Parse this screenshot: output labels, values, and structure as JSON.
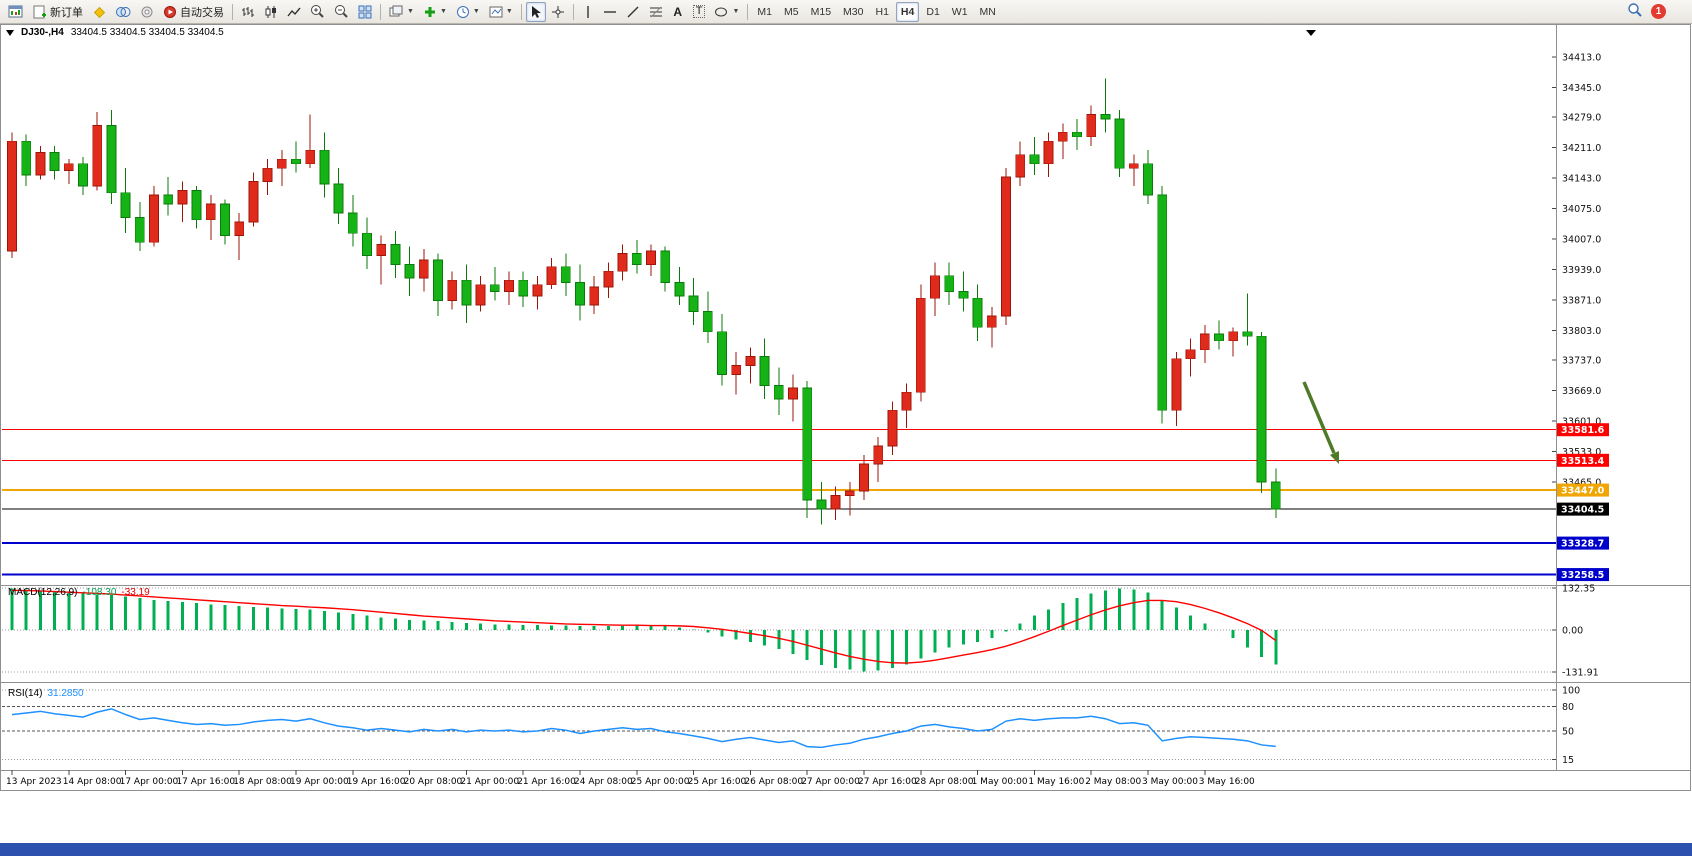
{
  "toolbar": {
    "new_order_label": "新订单",
    "auto_trading_label": "自动交易",
    "text_tool_label": "A",
    "label_tool_label": "T",
    "timeframes": [
      "M1",
      "M5",
      "M15",
      "M30",
      "H1",
      "H4",
      "D1",
      "W1",
      "MN"
    ],
    "active_timeframe": "H4",
    "notification_count": "1"
  },
  "chart": {
    "title": "DJ30-,H4",
    "ohlc": "33404.5 33404.5 33404.5 33404.5"
  },
  "colors": {
    "up": "#e02a1c",
    "up_border": "#9c1508",
    "down": "#16b316",
    "down_border": "#0a7a0a",
    "macd_hist": "#00b050",
    "macd_signal": "#ff0000",
    "rsi_line": "#1e90ff",
    "arrow": "#4e7a28",
    "axis_text": "#111111",
    "separator": "#8f8f8f"
  },
  "chart_data": {
    "type": "candlestick",
    "symbol": "DJ30-",
    "timeframe": "H4",
    "y_axis": {
      "ticks": [
        34413.0,
        34345.0,
        34279.0,
        34211.0,
        34143.0,
        34075.0,
        34007.0,
        33939.0,
        33871.0,
        33803.0,
        33737.0,
        33669.0,
        33601.0,
        33533.0,
        33465.0
      ]
    },
    "hlines": [
      {
        "price": 33581.6,
        "label": "33581.6",
        "color": "#ff0000",
        "width": 1
      },
      {
        "price": 33513.4,
        "label": "33513.4",
        "color": "#ff0000",
        "width": 1
      },
      {
        "price": 33447.0,
        "label": "33447.0",
        "color": "#f0a500",
        "width": 2
      },
      {
        "price": 33404.5,
        "label": "33404.5",
        "color": "#000000",
        "width": 1,
        "current": true
      },
      {
        "price": 33328.7,
        "label": "33328.7",
        "color": "#0000cd",
        "width": 2
      },
      {
        "price": 33258.5,
        "label": "33258.5",
        "color": "#0000cd",
        "width": 2
      }
    ],
    "candles": [
      [
        33980,
        34245,
        33965,
        34225
      ],
      [
        34225,
        34240,
        34125,
        34150
      ],
      [
        34150,
        34215,
        34140,
        34200
      ],
      [
        34200,
        34215,
        34140,
        34160
      ],
      [
        34160,
        34185,
        34130,
        34175
      ],
      [
        34175,
        34190,
        34105,
        34125
      ],
      [
        34125,
        34290,
        34115,
        34260
      ],
      [
        34260,
        34295,
        34085,
        34110
      ],
      [
        34110,
        34165,
        34020,
        34055
      ],
      [
        34055,
        34090,
        33980,
        34000
      ],
      [
        34000,
        34125,
        33990,
        34105
      ],
      [
        34105,
        34145,
        34060,
        34085
      ],
      [
        34085,
        34135,
        34045,
        34115
      ],
      [
        34115,
        34125,
        34030,
        34050
      ],
      [
        34050,
        34105,
        34005,
        34085
      ],
      [
        34085,
        34095,
        33995,
        34015
      ],
      [
        34015,
        34065,
        33960,
        34045
      ],
      [
        34045,
        34155,
        34035,
        34135
      ],
      [
        34135,
        34185,
        34105,
        34165
      ],
      [
        34165,
        34205,
        34125,
        34185
      ],
      [
        34185,
        34225,
        34155,
        34175
      ],
      [
        34175,
        34285,
        34165,
        34205
      ],
      [
        34205,
        34245,
        34100,
        34130
      ],
      [
        34130,
        34165,
        34040,
        34065
      ],
      [
        34065,
        34105,
        33990,
        34020
      ],
      [
        34020,
        34055,
        33940,
        33970
      ],
      [
        33970,
        34015,
        33905,
        33995
      ],
      [
        33995,
        34025,
        33920,
        33950
      ],
      [
        33950,
        33990,
        33880,
        33920
      ],
      [
        33920,
        33985,
        33890,
        33960
      ],
      [
        33960,
        33975,
        33835,
        33870
      ],
      [
        33870,
        33935,
        33850,
        33915
      ],
      [
        33915,
        33950,
        33820,
        33860
      ],
      [
        33860,
        33925,
        33845,
        33905
      ],
      [
        33905,
        33945,
        33870,
        33890
      ],
      [
        33890,
        33935,
        33860,
        33915
      ],
      [
        33915,
        33935,
        33855,
        33880
      ],
      [
        33880,
        33925,
        33850,
        33905
      ],
      [
        33905,
        33965,
        33895,
        33945
      ],
      [
        33945,
        33975,
        33880,
        33910
      ],
      [
        33910,
        33950,
        33825,
        33860
      ],
      [
        33860,
        33925,
        33840,
        33900
      ],
      [
        33900,
        33955,
        33875,
        33935
      ],
      [
        33935,
        33995,
        33915,
        33975
      ],
      [
        33975,
        34005,
        33930,
        33950
      ],
      [
        33950,
        33995,
        33925,
        33980
      ],
      [
        33980,
        33990,
        33890,
        33910
      ],
      [
        33910,
        33945,
        33860,
        33880
      ],
      [
        33880,
        33920,
        33815,
        33845
      ],
      [
        33845,
        33890,
        33775,
        33800
      ],
      [
        33800,
        33840,
        33680,
        33705
      ],
      [
        33705,
        33755,
        33660,
        33725
      ],
      [
        33725,
        33765,
        33685,
        33745
      ],
      [
        33745,
        33785,
        33650,
        33680
      ],
      [
        33680,
        33720,
        33615,
        33650
      ],
      [
        33650,
        33705,
        33600,
        33675
      ],
      [
        33675,
        33690,
        33385,
        33425
      ],
      [
        33425,
        33465,
        33370,
        33405
      ],
      [
        33405,
        33455,
        33380,
        33435
      ],
      [
        33435,
        33465,
        33390,
        33445
      ],
      [
        33445,
        33525,
        33425,
        33505
      ],
      [
        33505,
        33565,
        33465,
        33545
      ],
      [
        33545,
        33645,
        33525,
        33625
      ],
      [
        33625,
        33685,
        33585,
        33665
      ],
      [
        33665,
        33905,
        33645,
        33875
      ],
      [
        33875,
        33955,
        33835,
        33925
      ],
      [
        33925,
        33955,
        33860,
        33890
      ],
      [
        33890,
        33935,
        33845,
        33875
      ],
      [
        33875,
        33905,
        33780,
        33810
      ],
      [
        33810,
        33855,
        33765,
        33835
      ],
      [
        33835,
        34165,
        33815,
        34145
      ],
      [
        34145,
        34225,
        34125,
        34195
      ],
      [
        34195,
        34235,
        34150,
        34175
      ],
      [
        34175,
        34245,
        34145,
        34225
      ],
      [
        34225,
        34265,
        34185,
        34245
      ],
      [
        34245,
        34275,
        34205,
        34235
      ],
      [
        34235,
        34305,
        34215,
        34285
      ],
      [
        34285,
        34365,
        34245,
        34275
      ],
      [
        34275,
        34295,
        34145,
        34165
      ],
      [
        34165,
        34195,
        34125,
        34175
      ],
      [
        34175,
        34205,
        34085,
        34105
      ],
      [
        34105,
        34125,
        33595,
        33625
      ],
      [
        33625,
        33755,
        33590,
        33740
      ],
      [
        33740,
        33785,
        33700,
        33760
      ],
      [
        33760,
        33815,
        33730,
        33795
      ],
      [
        33795,
        33825,
        33760,
        33780
      ],
      [
        33780,
        33810,
        33745,
        33800
      ],
      [
        33800,
        33885,
        33770,
        33790
      ],
      [
        33790,
        33800,
        33440,
        33465
      ],
      [
        33465,
        33495,
        33385,
        33404.5
      ]
    ],
    "time_labels": [
      "13 Apr 2023",
      "14 Apr 08:00",
      "17 Apr 00:00",
      "17 Apr 16:00",
      "18 Apr 08:00",
      "19 Apr 00:00",
      "19 Apr 16:00",
      "20 Apr 08:00",
      "21 Apr 00:00",
      "21 Apr 16:00",
      "24 Apr 08:00",
      "25 Apr 00:00",
      "25 Apr 16:00",
      "26 Apr 08:00",
      "27 Apr 00:00",
      "27 Apr 16:00",
      "28 Apr 08:00",
      "1 May 00:00",
      "1 May 16:00",
      "2 May 08:00",
      "3 May 00:00",
      "3 May 16:00"
    ],
    "macd": {
      "label": "MACD(12,26,9)",
      "value": "-108.30",
      "signal_value": "-33.19",
      "scale": {
        "max": 132.35,
        "min": -131.91
      },
      "scale_labels": [
        "132.35",
        "0.00",
        "-131.91"
      ],
      "histogram": [
        130,
        128,
        125,
        120,
        118,
        115,
        112,
        110,
        105,
        100,
        95,
        92,
        88,
        85,
        80,
        78,
        75,
        72,
        70,
        68,
        66,
        64,
        60,
        55,
        50,
        45,
        40,
        36,
        32,
        30,
        28,
        25,
        22,
        20,
        18,
        17,
        16,
        15,
        14,
        14,
        13,
        12,
        12,
        13,
        14,
        14,
        12,
        8,
        2,
        -8,
        -20,
        -30,
        -38,
        -48,
        -60,
        -75,
        -95,
        -110,
        -120,
        -125,
        -130,
        -128,
        -120,
        -108,
        -90,
        -70,
        -55,
        -45,
        -38,
        -25,
        -5,
        20,
        45,
        65,
        85,
        100,
        115,
        125,
        130,
        128,
        118,
        95,
        70,
        45,
        20,
        0,
        -25,
        -55,
        -85,
        -108.3
      ],
      "signal": [
        125,
        124,
        123,
        121,
        119,
        117,
        115,
        113,
        110,
        107,
        104,
        101,
        98,
        95,
        92,
        89,
        86,
        83,
        80,
        77,
        75,
        72,
        70,
        67,
        64,
        60,
        56,
        52,
        48,
        44,
        41,
        38,
        35,
        32,
        29,
        27,
        25,
        23,
        21,
        19,
        18,
        17,
        16,
        15,
        15,
        14,
        14,
        13,
        11,
        7,
        2,
        -4,
        -11,
        -18,
        -26,
        -36,
        -48,
        -60,
        -72,
        -83,
        -92,
        -99,
        -103,
        -104,
        -101,
        -95,
        -87,
        -79,
        -71,
        -62,
        -51,
        -37,
        -21,
        -4,
        14,
        31,
        48,
        63,
        76,
        86,
        93,
        93,
        89,
        80,
        68,
        54,
        38,
        20,
        -1,
        -33.19
      ]
    },
    "rsi": {
      "label": "RSI(14)",
      "value": "31.2850",
      "levels": [
        100,
        80,
        50,
        15
      ],
      "values": [
        70,
        72,
        74,
        71,
        69,
        67,
        73,
        77,
        70,
        64,
        66,
        63,
        60,
        58,
        59,
        57,
        58,
        61,
        63,
        64,
        62,
        65,
        60,
        56,
        54,
        51,
        53,
        51,
        49,
        52,
        50,
        52,
        49,
        51,
        50,
        51,
        49,
        50,
        53,
        51,
        47,
        50,
        52,
        54,
        52,
        53,
        49,
        47,
        44,
        41,
        37,
        40,
        42,
        39,
        36,
        38,
        31,
        30,
        33,
        35,
        40,
        43,
        47,
        50,
        56,
        58,
        55,
        53,
        50,
        52,
        62,
        65,
        63,
        65,
        66,
        66,
        68,
        65,
        59,
        60,
        57,
        38,
        41,
        43,
        42,
        41,
        40,
        38,
        33,
        31.29
      ]
    }
  }
}
